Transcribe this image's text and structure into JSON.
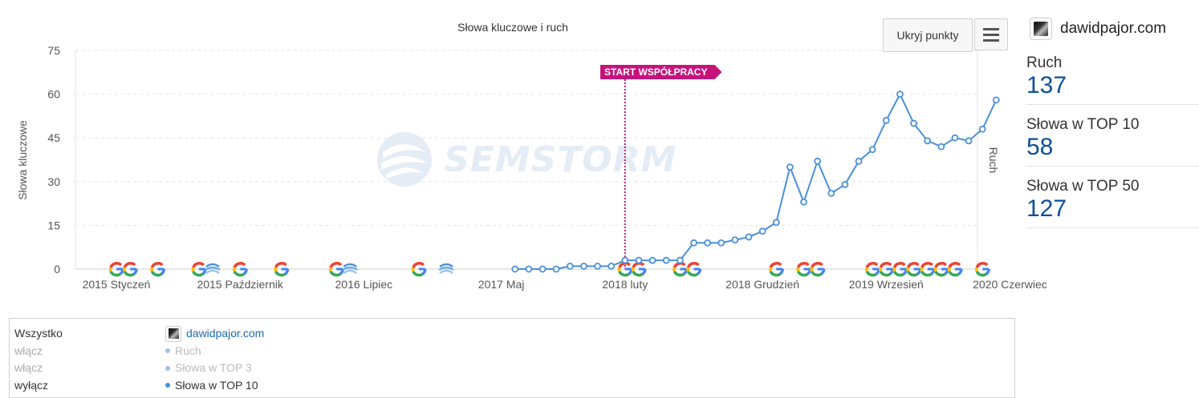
{
  "chart": {
    "title": "Słowa kluczowe i ruch",
    "y_axis_label": "Słowa kluczowe",
    "y2_axis_label": "Ruch",
    "watermark": "SEMSTORM",
    "start_flag": "START WSPÓŁPRACY",
    "hide_points_label": "Ukryj punkty",
    "menu_icon": "hamburger-menu-icon",
    "line_color": "#4a90d9",
    "flag_color": "#c5137b"
  },
  "chart_data": {
    "type": "line",
    "x_start": "2015 Styczeń",
    "x_interval": "month",
    "x_tick_labels": [
      "2015 Styczeń",
      "2015 Październik",
      "2016 Lipiec",
      "2017 Maj",
      "2018 luty",
      "2018 Grudzień",
      "2019 Wrzesień",
      "2020 Czerwiec"
    ],
    "ylim": [
      0,
      75
    ],
    "y_ticks": [
      0,
      15,
      30,
      45,
      60,
      75
    ],
    "grid": true,
    "series": [
      {
        "name": "Słowa w TOP 10",
        "points": [
          {
            "x": "2017 Czerwiec",
            "y": 0
          },
          {
            "x": "2017 Lipiec",
            "y": 0
          },
          {
            "x": "2017 Sierpień",
            "y": 0
          },
          {
            "x": "2017 Wrzesień",
            "y": 0
          },
          {
            "x": "2017 Październik",
            "y": 1
          },
          {
            "x": "2017 Listopad",
            "y": 1
          },
          {
            "x": "2017 Grudzień",
            "y": 1
          },
          {
            "x": "2018 Styczeń",
            "y": 1
          },
          {
            "x": "2018 luty",
            "y": 3
          },
          {
            "x": "2018 Marzec",
            "y": 3
          },
          {
            "x": "2018 Kwiecień",
            "y": 3
          },
          {
            "x": "2018 Maj",
            "y": 3
          },
          {
            "x": "2018 Czerwiec",
            "y": 3
          },
          {
            "x": "2018 Lipiec",
            "y": 9
          },
          {
            "x": "2018 Sierpień",
            "y": 9
          },
          {
            "x": "2018 Wrzesień",
            "y": 9
          },
          {
            "x": "2018 Październik",
            "y": 10
          },
          {
            "x": "2018 Listopad",
            "y": 11
          },
          {
            "x": "2018 Grudzień",
            "y": 13
          },
          {
            "x": "2019 Styczeń",
            "y": 16
          },
          {
            "x": "2019 Luty",
            "y": 35
          },
          {
            "x": "2019 Marzec",
            "y": 23
          },
          {
            "x": "2019 Kwiecień",
            "y": 37
          },
          {
            "x": "2019 Maj",
            "y": 26
          },
          {
            "x": "2019 Czerwiec",
            "y": 29
          },
          {
            "x": "2019 Lipiec",
            "y": 37
          },
          {
            "x": "2019 Sierpień",
            "y": 41
          },
          {
            "x": "2019 Wrzesień",
            "y": 51
          },
          {
            "x": "2019 Październik",
            "y": 60
          },
          {
            "x": "2019 Listopad",
            "y": 50
          },
          {
            "x": "2019 Grudzień",
            "y": 44
          },
          {
            "x": "2020 Styczeń",
            "y": 42
          },
          {
            "x": "2020 Luty",
            "y": 45
          },
          {
            "x": "2020 Marzec",
            "y": 44
          },
          {
            "x": "2020 Kwiecień",
            "y": 48
          },
          {
            "x": "2020 Maj",
            "y": 58
          }
        ]
      }
    ],
    "start_marker_x": "2018 luty",
    "google_update_markers": [
      {
        "x": "2015 Styczeń",
        "icon": "google-icon"
      },
      {
        "x": "2015 Luty",
        "icon": "google-icon"
      },
      {
        "x": "2015 Kwiecień",
        "icon": "google-icon"
      },
      {
        "x": "2015 Lipiec",
        "icon": "google-icon"
      },
      {
        "x": "2015 Sierpień",
        "icon": "penguin-update-icon"
      },
      {
        "x": "2015 Październik",
        "icon": "google-icon"
      },
      {
        "x": "2016 Styczeń",
        "icon": "google-icon"
      },
      {
        "x": "2016 Maj",
        "icon": "google-icon"
      },
      {
        "x": "2016 Czerwiec",
        "icon": "penguin-update-icon"
      },
      {
        "x": "2016 Listopad",
        "icon": "google-icon"
      },
      {
        "x": "2017 Styczeń",
        "icon": "penguin-update-icon"
      },
      {
        "x": "2018 luty",
        "icon": "google-icon"
      },
      {
        "x": "2018 Marzec",
        "icon": "google-icon"
      },
      {
        "x": "2018 Czerwiec",
        "icon": "google-icon"
      },
      {
        "x": "2018 Lipiec",
        "icon": "google-icon"
      },
      {
        "x": "2019 Styczeń",
        "icon": "google-icon"
      },
      {
        "x": "2019 Marzec",
        "icon": "google-icon"
      },
      {
        "x": "2019 Kwiecień",
        "icon": "google-icon"
      },
      {
        "x": "2019 Sierpień",
        "icon": "google-icon"
      },
      {
        "x": "2019 Wrzesień",
        "icon": "google-icon"
      },
      {
        "x": "2019 Październik",
        "icon": "google-icon"
      },
      {
        "x": "2019 Listopad",
        "icon": "google-icon"
      },
      {
        "x": "2019 Grudzień",
        "icon": "google-icon"
      },
      {
        "x": "2020 Styczeń",
        "icon": "google-icon"
      },
      {
        "x": "2020 Luty",
        "icon": "google-icon"
      },
      {
        "x": "2020 Kwiecień",
        "icon": "google-icon"
      }
    ]
  },
  "side_panel": {
    "site_name": "dawidpajor.com",
    "stats": [
      {
        "label": "Ruch",
        "value": "137"
      },
      {
        "label": "Słowa w TOP 10",
        "value": "58"
      },
      {
        "label": "Słowa w TOP 50",
        "value": "127"
      }
    ]
  },
  "legend": {
    "left": [
      "Wszystko",
      "włącz",
      "włącz",
      "wyłącz"
    ],
    "site_name": "dawidpajor.com",
    "series": [
      "Ruch",
      "Słowa w TOP 3",
      "Słowa w TOP 10"
    ]
  }
}
